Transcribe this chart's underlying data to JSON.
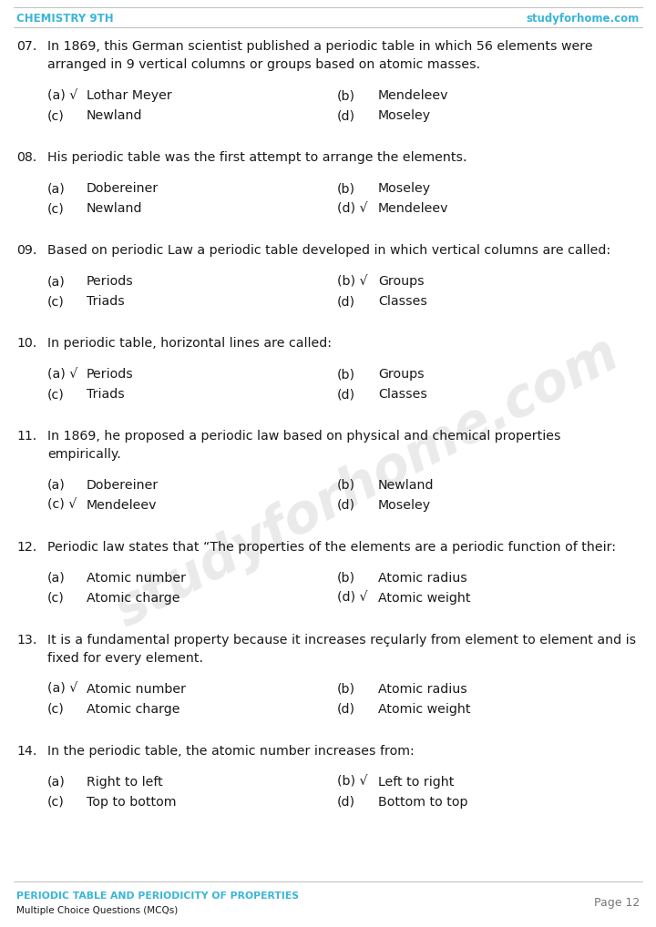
{
  "header_left": "CHEMISTRY 9TH",
  "header_right": "studyforhome.com",
  "header_color": "#3ab5d8",
  "header_line_color": "#c0c0c0",
  "footer_title": "PERIODIC TABLE AND PERIODICITY OF PROPERTIES",
  "footer_subtitle": "Multiple Choice Questions (MCQs)",
  "footer_page": "Page 12",
  "footer_color": "#3ab5d8",
  "bg_color": "#ffffff",
  "text_color": "#1a1a1a",
  "watermark": "studyforhome.com",
  "questions": [
    {
      "num": "07.",
      "question": "In 1869, this German scientist published a periodic table in which 56 elements were\narranged in 9 vertical columns or groups based on atomic masses.",
      "options": [
        {
          "label": "(a) √",
          "text": "Lothar Meyer"
        },
        {
          "label": "(b)",
          "text": "Mendeleev"
        },
        {
          "label": "(c)",
          "text": "Newland"
        },
        {
          "label": "(d)",
          "text": "Moseley"
        }
      ]
    },
    {
      "num": "08.",
      "question": "His periodic table was the first attempt to arrange the elements.",
      "options": [
        {
          "label": "(a)",
          "text": "Dobereiner"
        },
        {
          "label": "(b)",
          "text": "Moseley"
        },
        {
          "label": "(c)",
          "text": "Newland"
        },
        {
          "label": "(d) √",
          "text": "Mendeleev"
        }
      ]
    },
    {
      "num": "09.",
      "question": "Based on periodic Law a periodic table developed in which vertical columns are called:",
      "options": [
        {
          "label": "(a)",
          "text": "Periods"
        },
        {
          "label": "(b) √",
          "text": "Groups"
        },
        {
          "label": "(c)",
          "text": "Triads"
        },
        {
          "label": "(d)",
          "text": "Classes"
        }
      ]
    },
    {
      "num": "10.",
      "question": "In periodic table, horizontal lines are called:",
      "options": [
        {
          "label": "(a) √",
          "text": "Periods"
        },
        {
          "label": "(b)",
          "text": "Groups"
        },
        {
          "label": "(c)",
          "text": "Triads"
        },
        {
          "label": "(d)",
          "text": "Classes"
        }
      ]
    },
    {
      "num": "11.",
      "question": "In 1869, he proposed a periodic law based on physical and chemical properties\nempirically.",
      "options": [
        {
          "label": "(a)",
          "text": "Dobereiner"
        },
        {
          "label": "(b)",
          "text": "Newland"
        },
        {
          "label": "(c) √",
          "text": "Mendeleev"
        },
        {
          "label": "(d)",
          "text": "Moseley"
        }
      ]
    },
    {
      "num": "12.",
      "question": "Periodic law states that “The properties of the elements are a periodic function of their:",
      "options": [
        {
          "label": "(a)",
          "text": "Atomic number"
        },
        {
          "label": "(b)",
          "text": "Atomic radius"
        },
        {
          "label": "(c)",
          "text": "Atomic charge"
        },
        {
          "label": "(d) √",
          "text": "Atomic weight"
        }
      ]
    },
    {
      "num": "13.",
      "question": "It is a fundamental property because it increases reçularly from element to element and is\nfixed for every element.",
      "options": [
        {
          "label": "(a) √",
          "text": "Atomic number"
        },
        {
          "label": "(b)",
          "text": "Atomic radius"
        },
        {
          "label": "(c)",
          "text": "Atomic charge"
        },
        {
          "label": "(d)",
          "text": "Atomic weight"
        }
      ]
    },
    {
      "num": "14.",
      "question": "In the periodic table, the atomic number increases from:",
      "options": [
        {
          "label": "(a)",
          "text": "Right to left"
        },
        {
          "label": "(b) √",
          "text": "Left to right"
        },
        {
          "label": "(c)",
          "text": "Top to bottom"
        },
        {
          "label": "(d)",
          "text": "Bottom to top"
        }
      ]
    }
  ]
}
